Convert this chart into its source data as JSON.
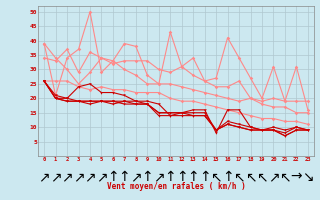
{
  "xlabel": "Vent moyen/en rafales ( km/h )",
  "x": [
    0,
    1,
    2,
    3,
    4,
    5,
    6,
    7,
    8,
    9,
    10,
    11,
    12,
    13,
    14,
    15,
    16,
    17,
    18,
    19,
    20,
    21,
    22,
    23
  ],
  "bg_color": "#cce8f0",
  "grid_color": "#b0c8d0",
  "series_light": [
    [
      39,
      21,
      34,
      37,
      50,
      29,
      33,
      39,
      38,
      28,
      25,
      43,
      31,
      34,
      26,
      27,
      41,
      34,
      27,
      20,
      31,
      19,
      31,
      16
    ],
    [
      34,
      33,
      37,
      29,
      36,
      34,
      32,
      33,
      33,
      33,
      30,
      29,
      31,
      28,
      26,
      24,
      24,
      26,
      20,
      19,
      20,
      19,
      19,
      19
    ],
    [
      39,
      34,
      30,
      25,
      29,
      34,
      33,
      30,
      28,
      25,
      25,
      25,
      24,
      23,
      22,
      21,
      20,
      19,
      20,
      18,
      17,
      17,
      15,
      15
    ],
    [
      26,
      26,
      26,
      24,
      23,
      24,
      23,
      23,
      22,
      22,
      22,
      20,
      19,
      19,
      18,
      17,
      16,
      15,
      14,
      13,
      13,
      12,
      12,
      11
    ]
  ],
  "series_dark": [
    [
      26,
      21,
      20,
      24,
      25,
      22,
      22,
      21,
      19,
      19,
      18,
      14,
      15,
      16,
      16,
      8,
      16,
      16,
      10,
      9,
      10,
      9,
      10,
      9
    ],
    [
      26,
      20,
      20,
      19,
      19,
      19,
      19,
      19,
      19,
      18,
      15,
      15,
      15,
      15,
      15,
      9,
      12,
      11,
      10,
      9,
      9,
      8,
      10,
      9
    ],
    [
      26,
      20,
      19,
      19,
      19,
      19,
      19,
      18,
      18,
      18,
      15,
      15,
      15,
      14,
      14,
      9,
      11,
      10,
      9,
      9,
      9,
      7,
      9,
      9
    ],
    [
      26,
      20,
      19,
      19,
      18,
      19,
      18,
      19,
      18,
      18,
      14,
      14,
      14,
      14,
      14,
      9,
      11,
      10,
      9,
      9,
      9,
      7,
      9,
      9
    ]
  ],
  "light_color": "#ff8888",
  "dark_color": "#cc0000",
  "ylim": [
    0,
    52
  ],
  "yticks": [
    5,
    10,
    15,
    20,
    25,
    30,
    35,
    40,
    45,
    50
  ],
  "wind_dirs": [
    "↗",
    "↗",
    "↗",
    "↗",
    "↗",
    "↗",
    "↑",
    "↑",
    "↗",
    "↑",
    "↗",
    "↑",
    "↑",
    "↑",
    "↑",
    "↖",
    "↑",
    "↖",
    "↖",
    "↖",
    "↗",
    "↖",
    "→",
    "↘"
  ]
}
